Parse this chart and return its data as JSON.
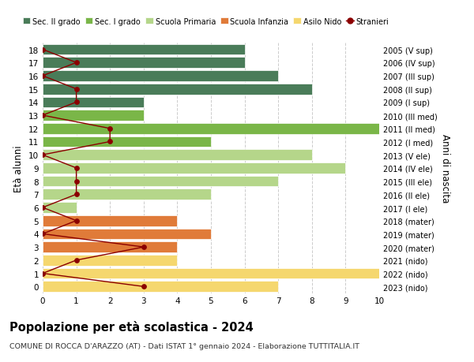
{
  "ages": [
    18,
    17,
    16,
    15,
    14,
    13,
    12,
    11,
    10,
    9,
    8,
    7,
    6,
    5,
    4,
    3,
    2,
    1,
    0
  ],
  "right_labels": [
    "2005 (V sup)",
    "2006 (IV sup)",
    "2007 (III sup)",
    "2008 (II sup)",
    "2009 (I sup)",
    "2010 (III med)",
    "2011 (II med)",
    "2012 (I med)",
    "2013 (V ele)",
    "2014 (IV ele)",
    "2015 (III ele)",
    "2016 (II ele)",
    "2017 (I ele)",
    "2018 (mater)",
    "2019 (mater)",
    "2020 (mater)",
    "2021 (nido)",
    "2022 (nido)",
    "2023 (nido)"
  ],
  "bar_values": [
    6,
    6,
    7,
    8,
    3,
    3,
    10,
    5,
    8,
    9,
    7,
    5,
    1,
    4,
    5,
    4,
    4,
    10,
    7
  ],
  "bar_colors": [
    "#4a7c59",
    "#4a7c59",
    "#4a7c59",
    "#4a7c59",
    "#4a7c59",
    "#7ab648",
    "#7ab648",
    "#7ab648",
    "#b5d68a",
    "#b5d68a",
    "#b5d68a",
    "#b5d68a",
    "#b5d68a",
    "#e07b39",
    "#e07b39",
    "#e07b39",
    "#f5d76e",
    "#f5d76e",
    "#f5d76e"
  ],
  "stranieri_values": [
    0,
    1,
    0,
    1,
    1,
    0,
    2,
    2,
    0,
    1,
    1,
    1,
    0,
    1,
    0,
    3,
    1,
    0,
    3
  ],
  "stranieri_color": "#8b0000",
  "legend_labels": [
    "Sec. II grado",
    "Sec. I grado",
    "Scuola Primaria",
    "Scuola Infanzia",
    "Asilo Nido",
    "Stranieri"
  ],
  "legend_colors": [
    "#4a7c59",
    "#7ab648",
    "#b5d68a",
    "#e07b39",
    "#f5d76e",
    "#8b0000"
  ],
  "title": "Popolazione per età scolastica - 2024",
  "subtitle": "COMUNE DI ROCCA D'ARAZZO (AT) - Dati ISTAT 1° gennaio 2024 - Elaborazione TUTTITALIA.IT",
  "ylabel": "Età alunni",
  "right_ylabel": "Anni di nascita",
  "xlim": [
    0,
    10
  ],
  "xticks": [
    0,
    1,
    2,
    3,
    4,
    5,
    6,
    7,
    8,
    9,
    10
  ],
  "ylim": [
    -0.5,
    18.5
  ],
  "bg_color": "#ffffff",
  "grid_color": "#cccccc"
}
